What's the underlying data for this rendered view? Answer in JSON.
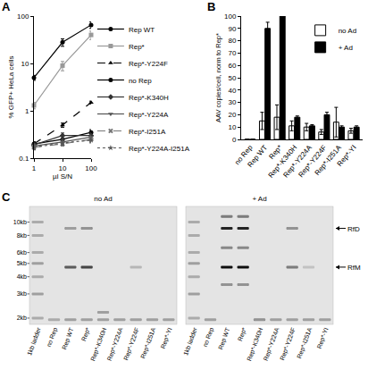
{
  "chart_data": [
    {
      "panel": "A",
      "type": "line",
      "x_label": "µl S/N",
      "y_label": "% GFP+ HeLa cells",
      "log": true,
      "grid": false,
      "legend": "right",
      "x": [
        1,
        10,
        100
      ],
      "xlim": [
        1,
        100
      ],
      "xticks": [
        1,
        10,
        100
      ],
      "ylim": [
        0.1,
        100
      ],
      "yticks": [
        0.1,
        1,
        10,
        100
      ],
      "series": [
        {
          "name": "Rep WT",
          "color": "#000000",
          "marker": "circle",
          "line_style": "solid",
          "values": [
            5,
            28,
            65
          ],
          "errors": [
            0.6,
            5,
            10
          ]
        },
        {
          "name": "Rep*",
          "color": "#999999",
          "marker": "square",
          "line_style": "solid",
          "values": [
            1.3,
            9,
            40
          ],
          "errors": [
            0.2,
            2,
            8
          ]
        },
        {
          "name": "Rep*-Y224F",
          "color": "#000000",
          "marker": "triangle-up",
          "line_style": "dash",
          "values": [
            0.2,
            0.5,
            1.5
          ],
          "errors": [
            0.02,
            0.05,
            0.1
          ]
        },
        {
          "name": "no Rep",
          "color": "#000000",
          "marker": "circle",
          "line_style": "solid",
          "values": [
            0.2,
            0.25,
            0.35
          ],
          "errors": [
            0.02,
            0.04,
            0.05
          ]
        },
        {
          "name": "Rep*-K340H",
          "color": "#333333",
          "marker": "diamond",
          "line_style": "solid",
          "values": [
            0.19,
            0.3,
            0.3
          ],
          "errors": [
            0.02,
            0.04,
            0.04
          ]
        },
        {
          "name": "Rep*-Y224A",
          "color": "#555555",
          "marker": "triangle-down",
          "line_style": "solid",
          "values": [
            0.18,
            0.22,
            0.28
          ],
          "errors": [
            0.02,
            0.03,
            0.03
          ]
        },
        {
          "name": "Rep*-I251A",
          "color": "#777777",
          "marker": "x",
          "line_style": "dash",
          "values": [
            0.17,
            0.2,
            0.25
          ],
          "errors": [
            0.02,
            0.02,
            0.03
          ]
        },
        {
          "name": "Rep*-Y224A-I251A",
          "color": "#555555",
          "marker": "star",
          "line_style": "dot",
          "values": [
            0.17,
            0.21,
            0.24
          ],
          "errors": [
            0.02,
            0.02,
            0.03
          ]
        }
      ]
    },
    {
      "panel": "B",
      "type": "bar",
      "y_label": "AAV copies/cell, norm to Rep*",
      "grid": false,
      "legend": "top right",
      "categories": [
        "no Rep",
        "Rep WT",
        "Rep*",
        "Rep*-K340H",
        "Rep*-Y224A",
        "Rep*-Y224F",
        "Rep*-I251A",
        "Rep*-YI"
      ],
      "ylim": [
        0,
        100
      ],
      "yticks": [
        0,
        10,
        20,
        30,
        40,
        50,
        60,
        70,
        80,
        90,
        100
      ],
      "series": [
        {
          "name": "no Ad",
          "color": "#ffffff",
          "values": [
            0,
            15,
            18,
            11,
            10,
            6,
            14,
            7
          ],
          "errors": [
            0,
            7,
            10,
            4,
            3,
            2,
            12,
            2
          ]
        },
        {
          "name": "+ Ad",
          "color": "#000000",
          "values": [
            0,
            90,
            100,
            18,
            11,
            20,
            10,
            10
          ],
          "errors": [
            0,
            5,
            0,
            1,
            1,
            2,
            1,
            1
          ]
        }
      ]
    }
  ],
  "gel": {
    "panel": "C",
    "ylim": [
      1.8,
      13
    ],
    "markers": [
      {
        "value": 10,
        "label": "10kb"
      },
      {
        "value": 8,
        "label": "8kb"
      },
      {
        "value": 6,
        "label": "6kb"
      },
      {
        "value": 5,
        "label": "5kb"
      },
      {
        "value": 4,
        "label": "4kb"
      },
      {
        "value": 3,
        "label": "3kb"
      },
      {
        "value": 2,
        "label": "2kb"
      }
    ],
    "arrows": [
      {
        "label": "RfD",
        "kb": 9
      },
      {
        "label": "RfM",
        "kb": 4.7
      }
    ],
    "groups": [
      {
        "label": "no Ad",
        "lanes": [
          {
            "label": "1kb ladder",
            "bands": [
              {
                "kb": 10,
                "intensity": 0.25
              },
              {
                "kb": 8,
                "intensity": 0.25
              },
              {
                "kb": 6,
                "intensity": 0.25
              },
              {
                "kb": 5,
                "intensity": 0.3
              },
              {
                "kb": 4,
                "intensity": 0.25
              },
              {
                "kb": 3,
                "intensity": 0.3
              },
              {
                "kb": 2,
                "intensity": 0.25
              }
            ]
          },
          {
            "label": "no Rep",
            "bands": [
              {
                "kb": 1.95,
                "intensity": 0.25
              }
            ]
          },
          {
            "label": "Rep WT",
            "bands": [
              {
                "kb": 9,
                "intensity": 0.35
              },
              {
                "kb": 4.7,
                "intensity": 0.65
              },
              {
                "kb": 1.95,
                "intensity": 0.3
              }
            ]
          },
          {
            "label": "Rep*",
            "bands": [
              {
                "kb": 9,
                "intensity": 0.4
              },
              {
                "kb": 4.7,
                "intensity": 0.75
              },
              {
                "kb": 1.95,
                "intensity": 0.3
              }
            ]
          },
          {
            "label": "Rep*-K340H",
            "bands": [
              {
                "kb": 2.2,
                "intensity": 0.3
              },
              {
                "kb": 1.95,
                "intensity": 0.3
              }
            ]
          },
          {
            "label": "Rep*-Y224A",
            "bands": [
              {
                "kb": 1.95,
                "intensity": 0.3
              }
            ]
          },
          {
            "label": "Rep*-Y224F",
            "bands": [
              {
                "kb": 4.7,
                "intensity": 0.2
              },
              {
                "kb": 1.95,
                "intensity": 0.3
              }
            ]
          },
          {
            "label": "Rep*-I251A",
            "bands": [
              {
                "kb": 1.95,
                "intensity": 0.3
              }
            ]
          },
          {
            "label": "Rep*-YI",
            "bands": [
              {
                "kb": 1.95,
                "intensity": 0.3
              }
            ]
          }
        ]
      },
      {
        "label": "+ Ad",
        "lanes": [
          {
            "label": "1kb ladder",
            "bands": [
              {
                "kb": 10,
                "intensity": 0.25
              },
              {
                "kb": 8,
                "intensity": 0.25
              },
              {
                "kb": 6,
                "intensity": 0.25
              },
              {
                "kb": 5,
                "intensity": 0.3
              },
              {
                "kb": 4,
                "intensity": 0.25
              },
              {
                "kb": 3,
                "intensity": 0.3
              },
              {
                "kb": 2,
                "intensity": 0.25
              }
            ]
          },
          {
            "label": "no Rep",
            "bands": [
              {
                "kb": 1.95,
                "intensity": 0.3
              }
            ]
          },
          {
            "label": "Rep WT",
            "bands": [
              {
                "kb": 11,
                "intensity": 0.5
              },
              {
                "kb": 9,
                "intensity": 0.9
              },
              {
                "kb": 6.5,
                "intensity": 0.45
              },
              {
                "kb": 4.7,
                "intensity": 1
              },
              {
                "kb": 3.5,
                "intensity": 0.4
              }
            ]
          },
          {
            "label": "Rep*",
            "bands": [
              {
                "kb": 11,
                "intensity": 0.5
              },
              {
                "kb": 9,
                "intensity": 0.9
              },
              {
                "kb": 6.5,
                "intensity": 0.45
              },
              {
                "kb": 4.7,
                "intensity": 1
              },
              {
                "kb": 3.5,
                "intensity": 0.4
              }
            ]
          },
          {
            "label": "Rep*-K340H",
            "bands": [
              {
                "kb": 1.95,
                "intensity": 0.4
              }
            ]
          },
          {
            "label": "Rep*-Y224A",
            "bands": [
              {
                "kb": 1.95,
                "intensity": 0.3
              }
            ]
          },
          {
            "label": "Rep*-Y224F",
            "bands": [
              {
                "kb": 9,
                "intensity": 0.4
              },
              {
                "kb": 4.7,
                "intensity": 0.5
              },
              {
                "kb": 1.95,
                "intensity": 0.3
              }
            ]
          },
          {
            "label": "Rep*-I251A",
            "bands": [
              {
                "kb": 4.7,
                "intensity": 0.15
              },
              {
                "kb": 1.95,
                "intensity": 0.3
              }
            ]
          },
          {
            "label": "Rep*-YI",
            "bands": [
              {
                "kb": 1.95,
                "intensity": 0.3
              }
            ]
          }
        ]
      }
    ]
  }
}
